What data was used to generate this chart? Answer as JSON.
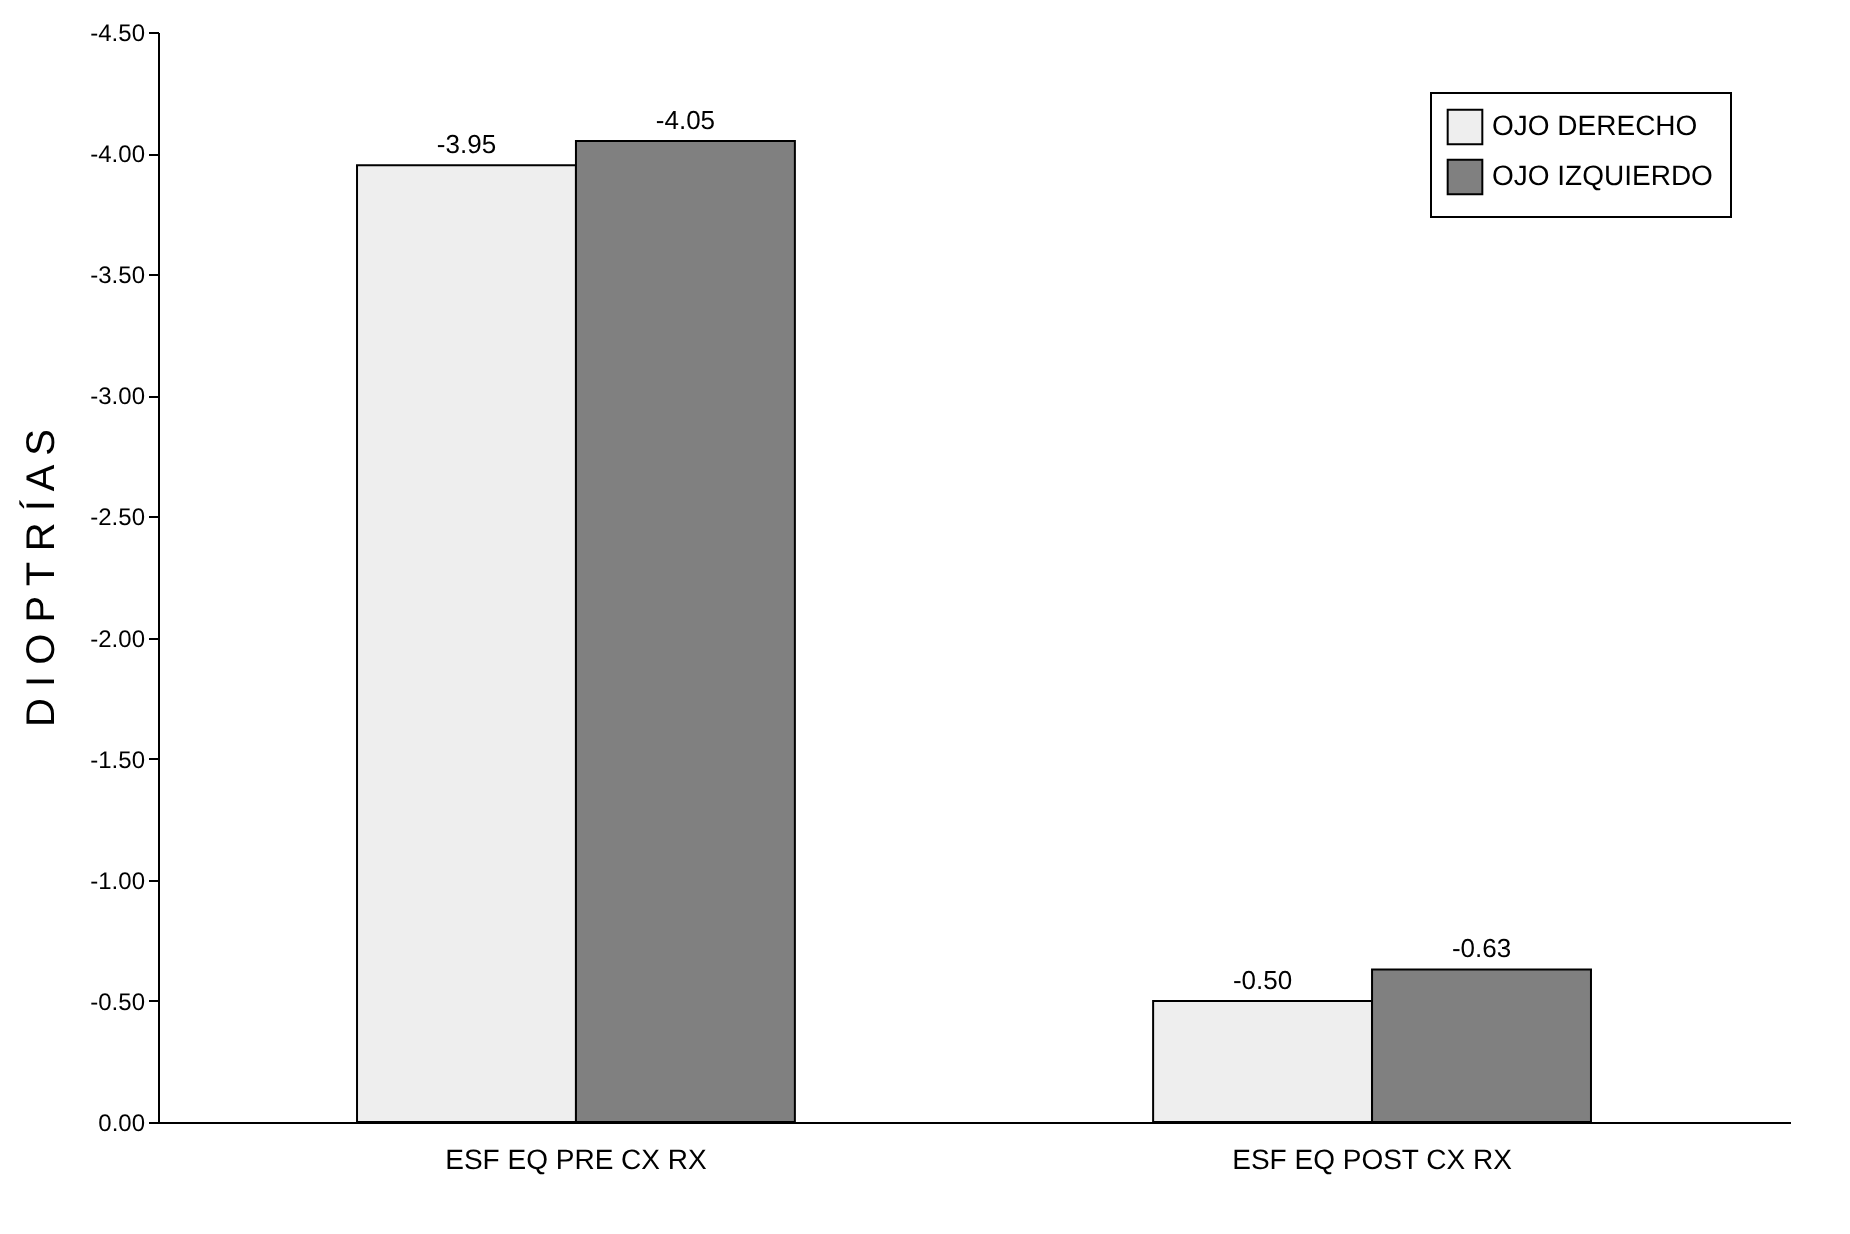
{
  "chart_data": {
    "type": "bar",
    "ylabel": "D I O P T R Í A S",
    "categories": [
      "ESF EQ PRE CX RX",
      "ESF EQ POST CX RX"
    ],
    "series": [
      {
        "name": "OJO DERECHO",
        "color": "#eeeeee",
        "values": [
          -3.95,
          -0.5
        ],
        "value_labels": [
          "-3.95",
          "-0.50"
        ]
      },
      {
        "name": "OJO IZQUIERDO",
        "color": "#808080",
        "values": [
          -4.05,
          -0.63
        ],
        "value_labels": [
          "-4.05",
          "-0.63"
        ]
      }
    ],
    "ylim": [
      0,
      -4.5
    ],
    "yticks": [
      {
        "value": 0,
        "label": "0.00"
      },
      {
        "value": -0.5,
        "label": "-0.50"
      },
      {
        "value": -1,
        "label": "-1.00"
      },
      {
        "value": -1.5,
        "label": "-1.50"
      },
      {
        "value": -2,
        "label": "-2.00"
      },
      {
        "value": -2.5,
        "label": "-2.50"
      },
      {
        "value": -3,
        "label": "-3.00"
      },
      {
        "value": -3.5,
        "label": "-3.50"
      },
      {
        "value": -4,
        "label": "-4.00"
      },
      {
        "value": -4.5,
        "label": "-4.50"
      }
    ],
    "grid": false,
    "legend": "top right"
  }
}
